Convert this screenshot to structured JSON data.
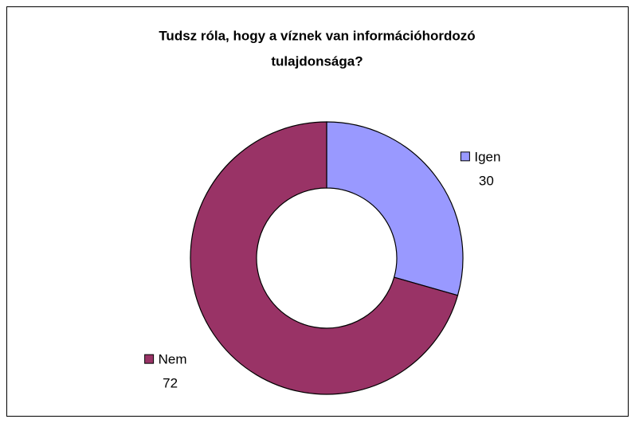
{
  "chart_data": {
    "type": "donut",
    "title": [
      "Tudsz róla, hogy a víznek van információhordozó",
      "tulajdonsága?"
    ],
    "categories": [
      "Igen",
      "Nem"
    ],
    "values": [
      30,
      72
    ],
    "colors": [
      "#9999ff",
      "#993366"
    ]
  }
}
